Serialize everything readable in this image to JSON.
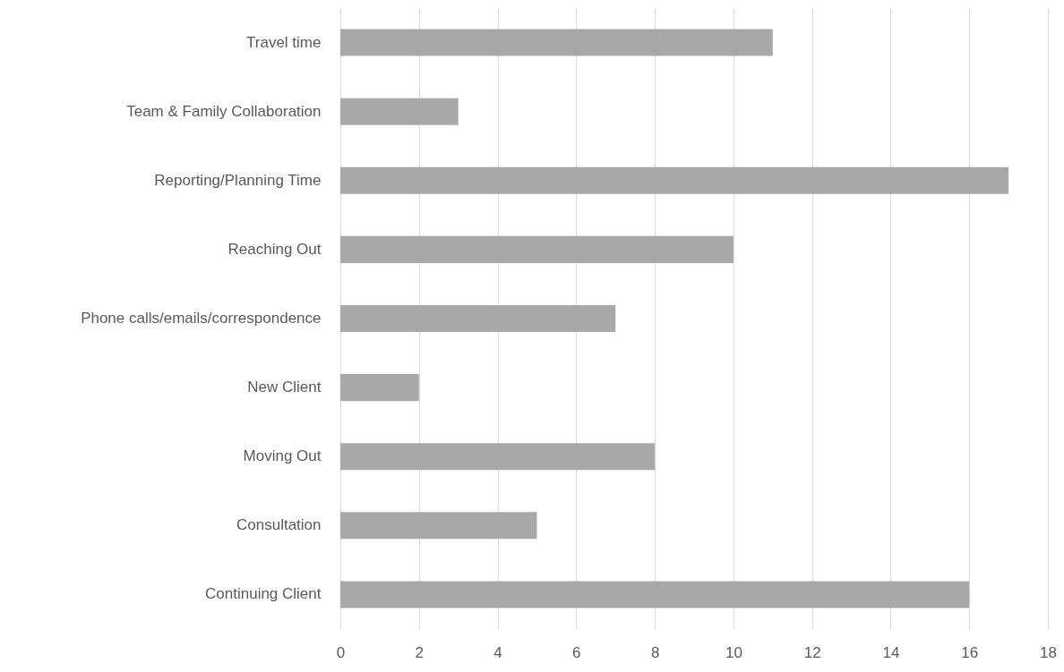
{
  "chart_data": {
    "type": "bar",
    "orientation": "horizontal",
    "categories": [
      "Travel time",
      "Team & Family Collaboration",
      "Reporting/Planning Time",
      "Reaching Out",
      "Phone calls/emails/correspondence",
      "New Client",
      "Moving Out",
      "Consultation",
      "Continuing Client"
    ],
    "values": [
      11,
      3,
      17,
      10,
      7,
      2,
      8,
      5,
      16
    ],
    "color": "#a8a8a8",
    "xlim": [
      0,
      18
    ],
    "xticks": [
      0,
      2,
      4,
      6,
      8,
      10,
      12,
      14,
      16,
      18
    ],
    "grid": "x"
  }
}
